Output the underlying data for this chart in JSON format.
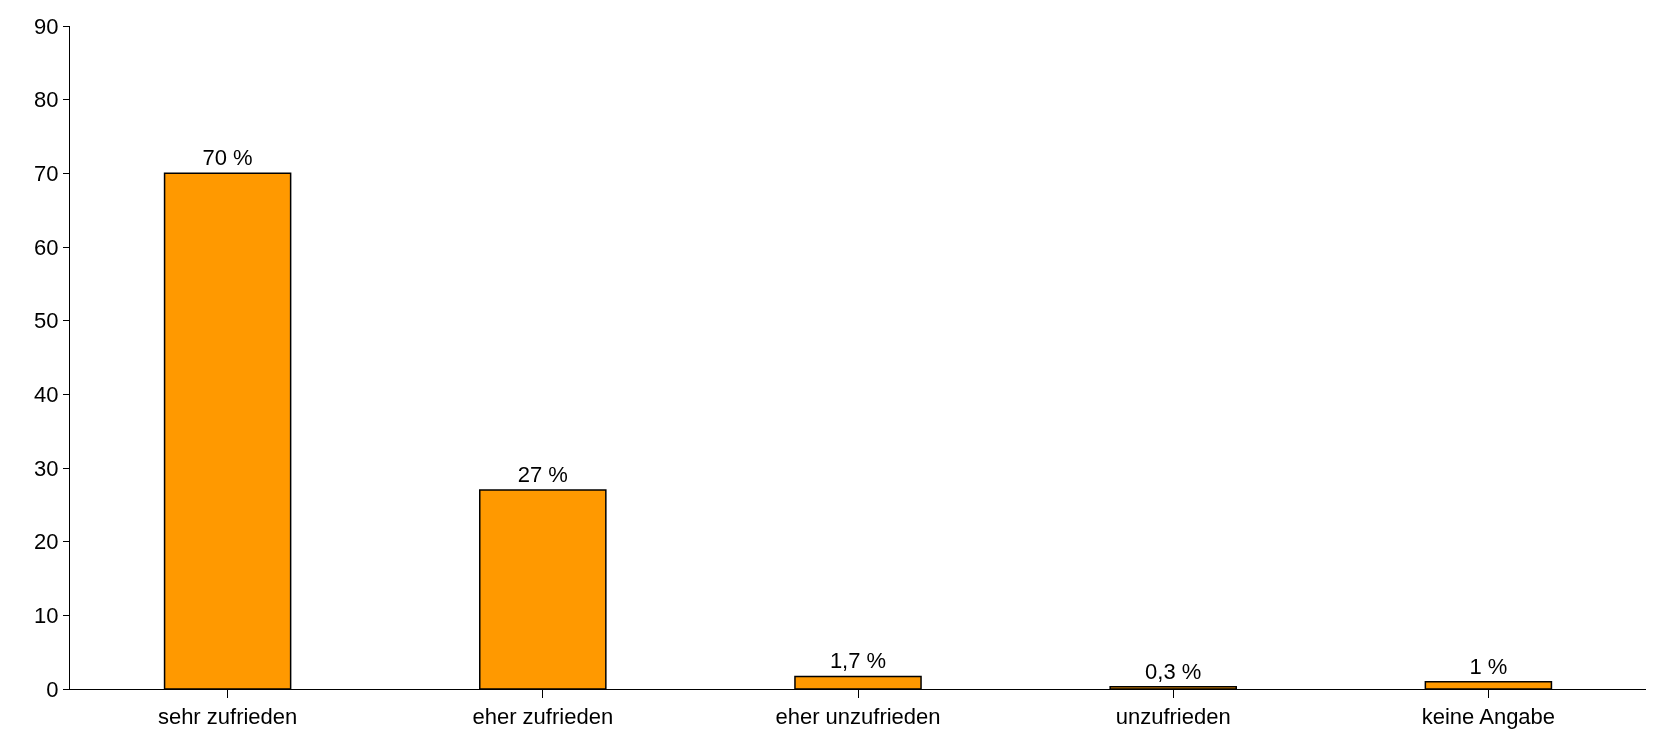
{
  "chart_data": {
    "type": "bar",
    "categories": [
      "sehr zufrieden",
      "eher zufrieden",
      "eher unzufrieden",
      "unzufrieden",
      "keine Angabe"
    ],
    "values": [
      70,
      27,
      1.7,
      0.3,
      1
    ],
    "value_labels": [
      "70 %",
      "27 %",
      "1,7 %",
      "0,3 %",
      "1 %"
    ],
    "color": "#ff9900",
    "ylim": [
      0,
      90
    ],
    "yticks": [
      0,
      10,
      20,
      30,
      40,
      50,
      60,
      70,
      80,
      90
    ],
    "grid": false,
    "legend": false
  }
}
